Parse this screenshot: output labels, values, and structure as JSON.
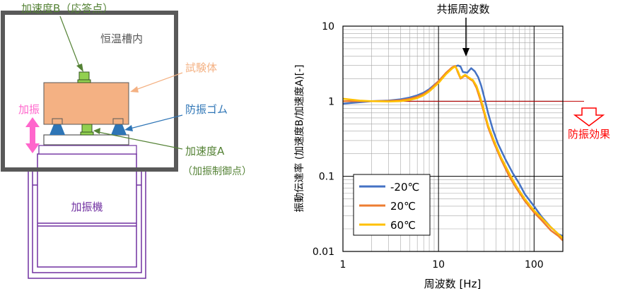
{
  "diagram": {
    "accel_b_label": "加速度B（応答点）",
    "chamber_label": "恒温槽内",
    "specimen_label": "試験体",
    "excitation_label": "加振",
    "isolator_label": "防振ゴム",
    "accel_a_label": "加速度A",
    "accel_a_sub": "（加振制御点）",
    "shaker_label": "加振機"
  },
  "chart_data": {
    "type": "line",
    "xscale": "log",
    "yscale": "log",
    "xlim": [
      1,
      200
    ],
    "ylim": [
      0.01,
      10
    ],
    "xlabel": "周波数 [Hz]",
    "ylabel": "振動伝達率 (加速度B/加速度A)[-]",
    "x_ticks": [
      "1",
      "10",
      "100"
    ],
    "y_ticks": [
      "0.01",
      "0.1",
      "1",
      "10"
    ],
    "grid": true,
    "legend_position": "bottom-left",
    "annotations": {
      "resonance": "共振周波数",
      "isolation": "防振効果"
    },
    "reference_line": {
      "y": 1,
      "color": "#c00000"
    },
    "series": [
      {
        "name": "-20℃",
        "color": "#4472c4",
        "points": [
          [
            1,
            0.93
          ],
          [
            1.5,
            0.97
          ],
          [
            2,
            1.0
          ],
          [
            3,
            1.02
          ],
          [
            4,
            1.06
          ],
          [
            5,
            1.12
          ],
          [
            6,
            1.2
          ],
          [
            7,
            1.3
          ],
          [
            8,
            1.45
          ],
          [
            10,
            1.85
          ],
          [
            12,
            2.35
          ],
          [
            14,
            2.8
          ],
          [
            16,
            3.0
          ],
          [
            17,
            2.9
          ],
          [
            18,
            2.45
          ],
          [
            20,
            2.4
          ],
          [
            22,
            2.75
          ],
          [
            24,
            2.5
          ],
          [
            26,
            2.1
          ],
          [
            28,
            1.6
          ],
          [
            30,
            1.15
          ],
          [
            33,
            0.7
          ],
          [
            37,
            0.42
          ],
          [
            42,
            0.27
          ],
          [
            50,
            0.17
          ],
          [
            60,
            0.11
          ],
          [
            70,
            0.08
          ],
          [
            80,
            0.058
          ],
          [
            100,
            0.04
          ],
          [
            120,
            0.029
          ],
          [
            150,
            0.021
          ],
          [
            180,
            0.017
          ],
          [
            200,
            0.016
          ]
        ]
      },
      {
        "name": "20℃",
        "color": "#ed7d31",
        "points": [
          [
            1,
            1.0
          ],
          [
            1.5,
            1.0
          ],
          [
            2,
            1.0
          ],
          [
            3,
            1.01
          ],
          [
            4,
            1.03
          ],
          [
            5,
            1.08
          ],
          [
            6,
            1.15
          ],
          [
            7,
            1.25
          ],
          [
            8,
            1.4
          ],
          [
            10,
            1.85
          ],
          [
            12,
            2.4
          ],
          [
            14,
            2.85
          ],
          [
            15,
            2.95
          ],
          [
            16,
            2.4
          ],
          [
            17,
            2.0
          ],
          [
            19,
            2.2
          ],
          [
            21,
            2.0
          ],
          [
            23,
            1.85
          ],
          [
            25,
            1.5
          ],
          [
            27,
            1.1
          ],
          [
            30,
            0.7
          ],
          [
            33,
            0.45
          ],
          [
            38,
            0.28
          ],
          [
            45,
            0.17
          ],
          [
            55,
            0.1
          ],
          [
            65,
            0.07
          ],
          [
            80,
            0.047
          ],
          [
            100,
            0.033
          ],
          [
            120,
            0.026
          ],
          [
            150,
            0.019
          ],
          [
            180,
            0.016
          ],
          [
            200,
            0.014
          ]
        ]
      },
      {
        "name": "60℃",
        "color": "#ffc000",
        "points": [
          [
            1,
            1.08
          ],
          [
            1.5,
            1.02
          ],
          [
            2,
            1.0
          ],
          [
            3,
            0.99
          ],
          [
            4,
            1.0
          ],
          [
            5,
            1.04
          ],
          [
            6,
            1.1
          ],
          [
            7,
            1.2
          ],
          [
            8,
            1.35
          ],
          [
            10,
            1.75
          ],
          [
            12,
            2.3
          ],
          [
            14,
            2.75
          ],
          [
            15,
            2.9
          ],
          [
            16,
            2.5
          ],
          [
            17,
            2.05
          ],
          [
            19,
            2.25
          ],
          [
            21,
            2.05
          ],
          [
            23,
            1.9
          ],
          [
            25,
            1.6
          ],
          [
            27,
            1.2
          ],
          [
            30,
            0.75
          ],
          [
            33,
            0.48
          ],
          [
            38,
            0.3
          ],
          [
            45,
            0.18
          ],
          [
            55,
            0.11
          ],
          [
            65,
            0.075
          ],
          [
            80,
            0.05
          ],
          [
            100,
            0.035
          ],
          [
            120,
            0.028
          ],
          [
            150,
            0.021
          ],
          [
            180,
            0.017
          ],
          [
            200,
            0.015
          ]
        ]
      }
    ]
  }
}
